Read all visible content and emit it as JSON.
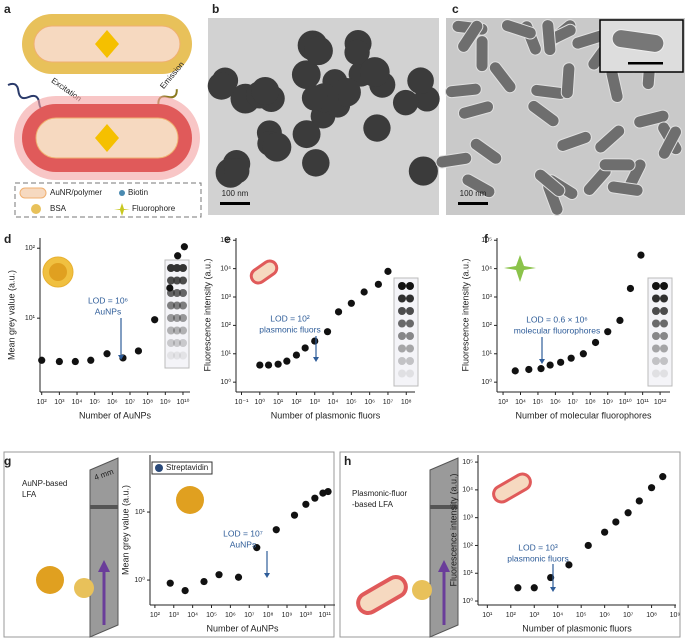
{
  "schematic": {
    "panel": "a",
    "excitation": "Excitation",
    "emission": "Emission",
    "legend": [
      "AuNR/polymer",
      "Biotin",
      "BSA",
      "Fluorophore"
    ]
  },
  "micrographs": [
    {
      "panel": "b",
      "scale_bar": "100 nm"
    },
    {
      "panel": "c",
      "scale_bar": "100 nm"
    }
  ],
  "lfa_schematics": [
    {
      "label": [
        "AuNP-based",
        "LFA"
      ],
      "width": "4 mm",
      "legend": "Streptavidin"
    },
    {
      "label": [
        "Plasmonic-fluor",
        "-based LFA"
      ]
    }
  ],
  "chart_data": [
    {
      "panel": "d",
      "type": "scatter",
      "xlabel": "Number of AuNPs",
      "ylabel": "Mean grey value (a.u.)",
      "log_x": true,
      "log_y": true,
      "color": "#111111",
      "x": [
        100,
        1000,
        8000,
        60000,
        500000,
        4000000,
        30000000,
        250000000,
        1800000000,
        5000000000,
        12000000000
      ],
      "values": [
        2.5,
        2.4,
        2.4,
        2.5,
        3.1,
        2.7,
        3.4,
        9.5,
        27,
        78,
        105
      ],
      "xlim": [
        80,
        25000000000
      ],
      "ylim": [
        0.88,
        140
      ],
      "xticks": [
        {
          "value": 100,
          "label": "10²"
        },
        {
          "value": 1000,
          "label": "10³"
        },
        {
          "value": 10000,
          "label": "10⁴"
        },
        {
          "value": 100000,
          "label": "10⁵"
        },
        {
          "value": 1000000,
          "label": "10⁶"
        },
        {
          "value": 10000000,
          "label": "10⁷"
        },
        {
          "value": 100000000,
          "label": "10⁸"
        },
        {
          "value": 1000000000,
          "label": "10⁹"
        },
        {
          "value": 10000000000,
          "label": "10¹⁰"
        }
      ],
      "yticks": [
        {
          "value": 10,
          "label": "10¹"
        },
        {
          "value": 100,
          "label": "10²"
        }
      ],
      "annotation": [
        "LOD = 10⁶",
        "AuNPs"
      ],
      "annotation_color": "#2f5d99"
    },
    {
      "panel": "e",
      "type": "scatter",
      "xlabel": "Number of plasmonic fluors",
      "ylabel": "Fluorescence intensity (a.u.)",
      "log_x": true,
      "log_y": true,
      "color": "#111111",
      "x": [
        1,
        3,
        10,
        30,
        100,
        300,
        1000,
        5000,
        20000,
        100000,
        500000,
        3000000,
        10000000
      ],
      "values": [
        4,
        4,
        4.3,
        5.5,
        9,
        16,
        28,
        60,
        300,
        600,
        1500,
        2800,
        8000
      ],
      "xlim": [
        0.05,
        300000000
      ],
      "ylim": [
        0.45,
        120000
      ],
      "xticks": [
        {
          "value": 0.1,
          "label": "10⁻¹"
        },
        {
          "value": 1,
          "label": "10⁰"
        },
        {
          "value": 10,
          "label": "10¹"
        },
        {
          "value": 100,
          "label": "10²"
        },
        {
          "value": 1000,
          "label": "10³"
        },
        {
          "value": 10000,
          "label": "10⁴"
        },
        {
          "value": 100000,
          "label": "10⁵"
        },
        {
          "value": 1000000,
          "label": "10⁶"
        },
        {
          "value": 10000000,
          "label": "10⁷"
        },
        {
          "value": 100000000,
          "label": "10⁸"
        }
      ],
      "yticks": [
        {
          "value": 1,
          "label": "10⁰"
        },
        {
          "value": 10,
          "label": "10¹"
        },
        {
          "value": 100,
          "label": "10²"
        },
        {
          "value": 1000,
          "label": "10³"
        },
        {
          "value": 10000,
          "label": "10⁴"
        },
        {
          "value": 100000,
          "label": "10⁵"
        }
      ],
      "annotation": [
        "LOD = 10²",
        "plasmonic fluors"
      ],
      "annotation_color": "#2f5d99"
    },
    {
      "panel": "f",
      "type": "scatter",
      "xlabel": "Number of molecular fluorophores",
      "ylabel": "Fluorescence intensity (a.u.)",
      "log_x": true,
      "log_y": true,
      "color": "#111111",
      "x": [
        5000,
        30000,
        150000,
        500000,
        2000000,
        8000000,
        40000000,
        200000000,
        1000000000,
        5000000000,
        20000000000,
        80000000000
      ],
      "values": [
        2.5,
        2.8,
        3,
        4,
        5,
        7,
        10,
        25,
        60,
        150,
        2000,
        30000
      ],
      "xlim": [
        450,
        3700000000000
      ],
      "ylim": [
        0.45,
        120000
      ],
      "xticks": [
        {
          "value": 1000,
          "label": "10³"
        },
        {
          "value": 10000,
          "label": "10⁴"
        },
        {
          "value": 100000,
          "label": "10⁵"
        },
        {
          "value": 1000000,
          "label": "10⁶"
        },
        {
          "value": 10000000,
          "label": "10⁷"
        },
        {
          "value": 100000000,
          "label": "10⁸"
        },
        {
          "value": 1000000000,
          "label": "10⁹"
        },
        {
          "value": 10000000000,
          "label": "10¹⁰"
        },
        {
          "value": 100000000000,
          "label": "10¹¹"
        },
        {
          "value": 1000000000000,
          "label": "10¹²"
        }
      ],
      "yticks": [
        {
          "value": 1,
          "label": "10⁰"
        },
        {
          "value": 10,
          "label": "10¹"
        },
        {
          "value": 100,
          "label": "10²"
        },
        {
          "value": 1000,
          "label": "10³"
        },
        {
          "value": 10000,
          "label": "10⁴"
        },
        {
          "value": 100000,
          "label": "10⁵"
        }
      ],
      "annotation": [
        "LOD = 0.6 × 10⁶",
        "molecular fluorophores"
      ],
      "annotation_color": "#2f5d99"
    },
    {
      "panel": "g",
      "type": "scatter",
      "xlabel": "Number of AuNPs",
      "ylabel": "Mean grey value (a.u.)",
      "log_x": true,
      "log_y": true,
      "color": "#111111",
      "x": [
        650,
        4000,
        40000,
        250000,
        2700000,
        25000000,
        270000000,
        2500000000,
        10000000000,
        30000000000,
        80000000000,
        150000000000
      ],
      "values": [
        0.9,
        0.7,
        0.95,
        1.2,
        1.1,
        3,
        5.5,
        9,
        13,
        16,
        19,
        20
      ],
      "xlim": [
        55,
        350000000000
      ],
      "ylim": [
        0.43,
        69
      ],
      "xticks": [
        {
          "value": 100,
          "label": "10²"
        },
        {
          "value": 1000,
          "label": "10³"
        },
        {
          "value": 10000,
          "label": "10⁴"
        },
        {
          "value": 100000,
          "label": "10⁵"
        },
        {
          "value": 1000000,
          "label": "10⁶"
        },
        {
          "value": 10000000,
          "label": "10⁷"
        },
        {
          "value": 100000000,
          "label": "10⁸"
        },
        {
          "value": 1000000000,
          "label": "10⁹"
        },
        {
          "value": 10000000000,
          "label": "10¹⁰"
        },
        {
          "value": 100000000000,
          "label": "10¹¹"
        }
      ],
      "yticks": [
        {
          "value": 1,
          "label": "10⁰"
        },
        {
          "value": 10,
          "label": "10¹"
        }
      ],
      "annotation": [
        "LOD = 10⁷",
        "AuNPs"
      ],
      "annotation_color": "#2f5d99"
    },
    {
      "panel": "h",
      "type": "scatter",
      "xlabel": "Number of plasmonic fluors",
      "ylabel": "Fluorescence intensity (a.u.)",
      "log_x": true,
      "log_y": true,
      "color": "#111111",
      "x": [
        200,
        1000,
        5000,
        30000,
        200000,
        1000000,
        3000000,
        10000000,
        30000000,
        100000000,
        300000000
      ],
      "values": [
        3,
        3,
        7,
        20,
        100,
        300,
        700,
        1500,
        4000,
        12000,
        30000
      ],
      "xlim": [
        4,
        1100000000
      ],
      "ylim": [
        0.72,
        180000
      ],
      "xticks": [
        {
          "value": 10,
          "label": "10¹"
        },
        {
          "value": 100,
          "label": "10²"
        },
        {
          "value": 1000,
          "label": "10³"
        },
        {
          "value": 10000,
          "label": "10⁴"
        },
        {
          "value": 100000,
          "label": "10⁵"
        },
        {
          "value": 1000000,
          "label": "10⁶"
        },
        {
          "value": 10000000,
          "label": "10⁷"
        },
        {
          "value": 100000000,
          "label": "10⁸"
        },
        {
          "value": 1000000000,
          "label": "10⁹"
        }
      ],
      "yticks": [
        {
          "value": 1,
          "label": "10⁰"
        },
        {
          "value": 10,
          "label": "10¹"
        },
        {
          "value": 100,
          "label": "10²"
        },
        {
          "value": 1000,
          "label": "10³"
        },
        {
          "value": 10000,
          "label": "10⁴"
        },
        {
          "value": 100000,
          "label": "10⁵"
        }
      ],
      "annotation": [
        "LOD = 10³",
        "plasmonic fluors"
      ],
      "annotation_color": "#2f5d99"
    }
  ]
}
